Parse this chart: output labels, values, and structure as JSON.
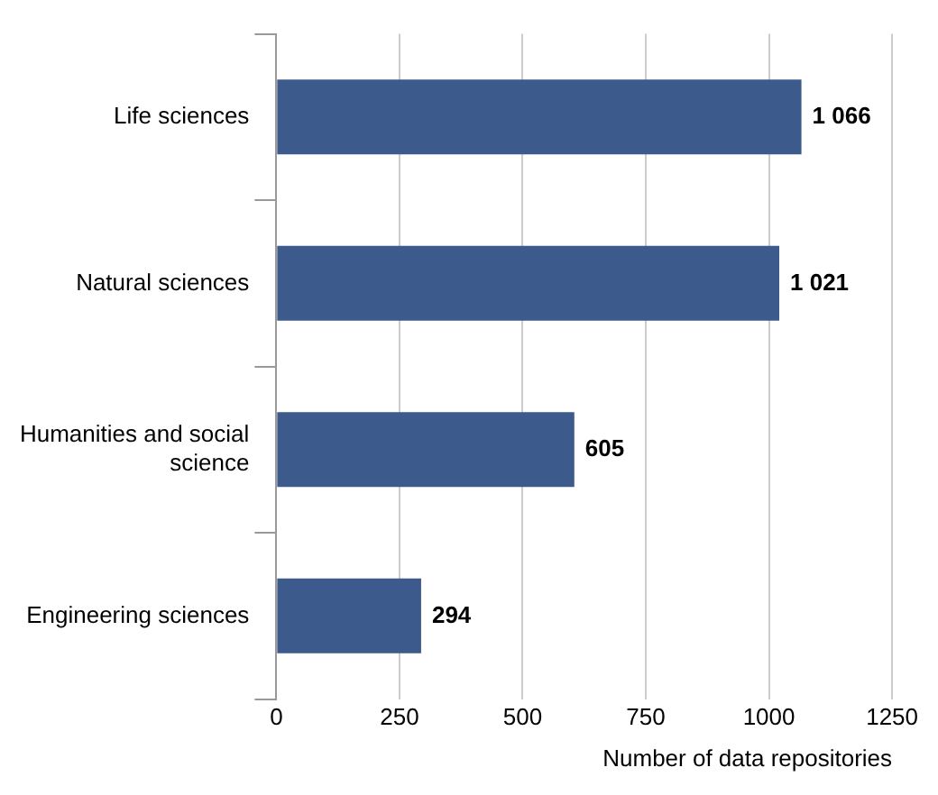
{
  "chart_data": {
    "type": "bar",
    "orientation": "horizontal",
    "xlabel": "Number of data repositories",
    "categories": [
      "Life sciences",
      "Natural sciences",
      "Humanities and social science",
      "Engineering sciences"
    ],
    "values": [
      1066,
      1021,
      605,
      294
    ],
    "value_labels": [
      "1 066",
      "1 021",
      "605",
      "294"
    ],
    "color": "#3d5a8c",
    "xlim": [
      0,
      1250
    ],
    "xticks": [
      0,
      250,
      500,
      750,
      1000,
      1250
    ],
    "grid": "x",
    "legend": false
  }
}
